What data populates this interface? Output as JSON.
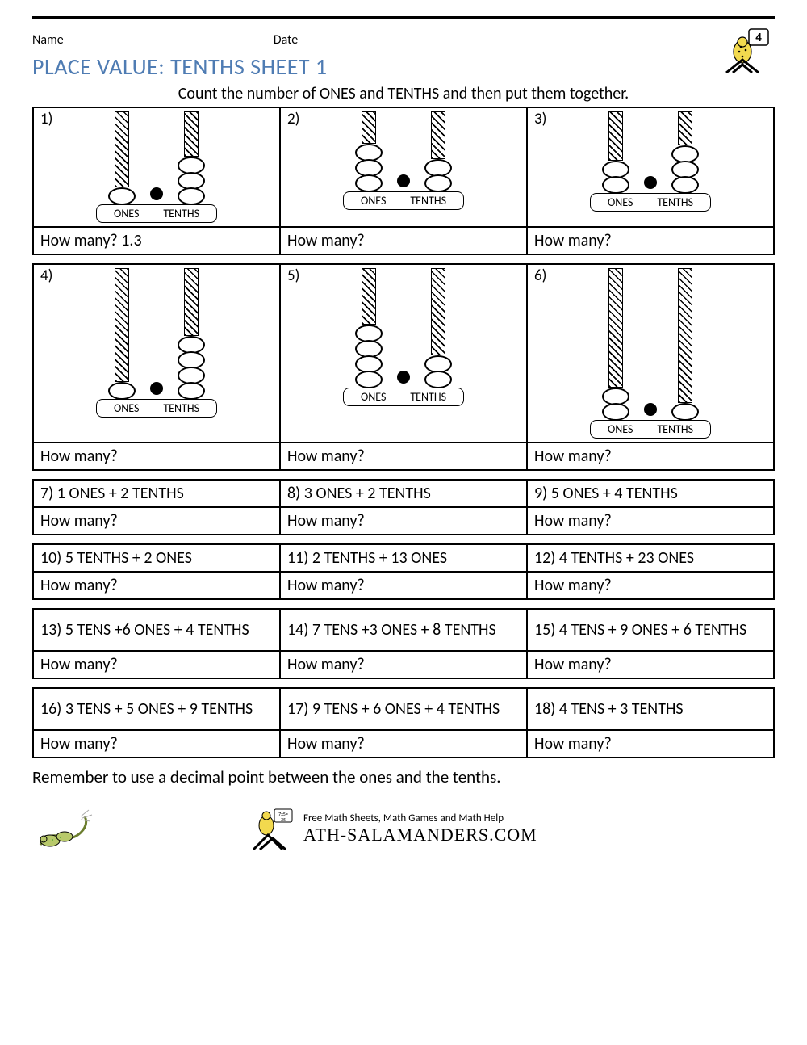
{
  "header": {
    "name_label": "Name",
    "date_label": "Date",
    "grade_number": "4"
  },
  "title": "PLACE VALUE: TENTHS SHEET 1",
  "instruction": "Count the number of ONES and TENTHS and then put them together.",
  "labels": {
    "ones": "ONES",
    "tenths": "TENTHS",
    "how_many": "How many?"
  },
  "visual_questions": [
    {
      "num": "1)",
      "ones": 1,
      "tenths": 3,
      "answer": "1.3",
      "rod_h": 56
    },
    {
      "num": "2)",
      "ones": 3,
      "tenths": 2,
      "answer": "",
      "rod_h": 40
    },
    {
      "num": "3)",
      "ones": 2,
      "tenths": 3,
      "answer": "",
      "rod_h": 42
    },
    {
      "num": "4)",
      "ones": 1,
      "tenths": 4,
      "answer": "",
      "rod_h": 84
    },
    {
      "num": "5)",
      "ones": 4,
      "tenths": 2,
      "answer": "",
      "rod_h": 70
    },
    {
      "num": "6)",
      "ones": 2,
      "tenths": 1,
      "answer": "",
      "rod_h": 110
    }
  ],
  "text_rows": [
    [
      {
        "q": "7) 1 ONES + 2 TENTHS",
        "a": "How many?"
      },
      {
        "q": "8) 3 ONES + 2 TENTHS",
        "a": "How many?"
      },
      {
        "q": "9) 5 ONES + 4 TENTHS",
        "a": "How many?"
      }
    ],
    [
      {
        "q": "10) 5 TENTHS + 2 ONES",
        "a": "How many?"
      },
      {
        "q": "11) 2 TENTHS + 13 ONES",
        "a": "How many?"
      },
      {
        "q": "12) 4 TENTHS + 23 ONES",
        "a": "How many?"
      }
    ],
    [
      {
        "q": "13) 5 TENS +6 ONES + 4 TENTHS",
        "a": "How many?"
      },
      {
        "q": "14) 7 TENS +3 ONES + 8 TENTHS",
        "a": "How many?"
      },
      {
        "q": "15) 4 TENS + 9 ONES + 6 TENTHS",
        "a": "How many?"
      }
    ],
    [
      {
        "q": "16) 3 TENS + 5 ONES + 9 TENTHS",
        "a": "How many?"
      },
      {
        "q": "17) 9 TENS + 6 ONES + 4 TENTHS",
        "a": "How many?"
      },
      {
        "q": "18) 4 TENS + 3 TENTHS",
        "a": "How many?"
      }
    ]
  ],
  "reminder": "Remember to use a decimal point between the ones and the tenths.",
  "footer": {
    "tagline": "Free Math Sheets, Math Games and Math Help",
    "brand": "ATH-SALAMANDERS.COM"
  },
  "colors": {
    "title": "#4f7cb3",
    "border": "#000000",
    "bg": "#ffffff"
  }
}
